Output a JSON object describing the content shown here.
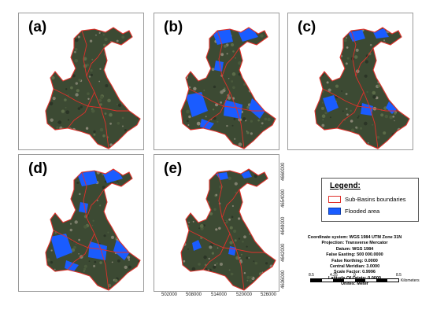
{
  "panels": [
    {
      "label": "(a)",
      "flood": "none"
    },
    {
      "label": "(b)",
      "flood": "high"
    },
    {
      "label": "(c)",
      "flood": "medium"
    },
    {
      "label": "(d)",
      "flood": "high"
    },
    {
      "label": "(e)",
      "flood": "low"
    }
  ],
  "axes": {
    "y_ticks": [
      "4660000",
      "4654000",
      "4648000",
      "4642000",
      "4636000"
    ],
    "x_ticks": [
      "502000",
      "508000",
      "514000",
      "520000",
      "526000"
    ]
  },
  "legend": {
    "title": "Legend:",
    "items": [
      {
        "label": "Sub-Basins boundaries",
        "color": "#e0312b"
      },
      {
        "label": "Flooded area",
        "color": "#1a5cff"
      }
    ]
  },
  "metadata": {
    "line1": "Coordinate system: WGS 1984 UTM Zone 31N",
    "line2": "Projection: Transverse Mercator",
    "line3": "Datum: WGS 1984",
    "line4": "False Easting: 500 000.0000",
    "line5": "False Northing: 0.0000",
    "line6": "Central Meridian: 3.0000",
    "line7": "Scale Factor: 0.9996",
    "line8": "Latitude Of Origin: 0.0000",
    "line9": "Unités: Meter"
  },
  "scale": {
    "ticks": [
      "8.5",
      "4.25",
      "0",
      "8.5"
    ],
    "unit": "Kilometers"
  },
  "colors": {
    "basin_fill": "#3c4a33",
    "boundary": "#e0312b",
    "flood": "#1a5cff"
  }
}
